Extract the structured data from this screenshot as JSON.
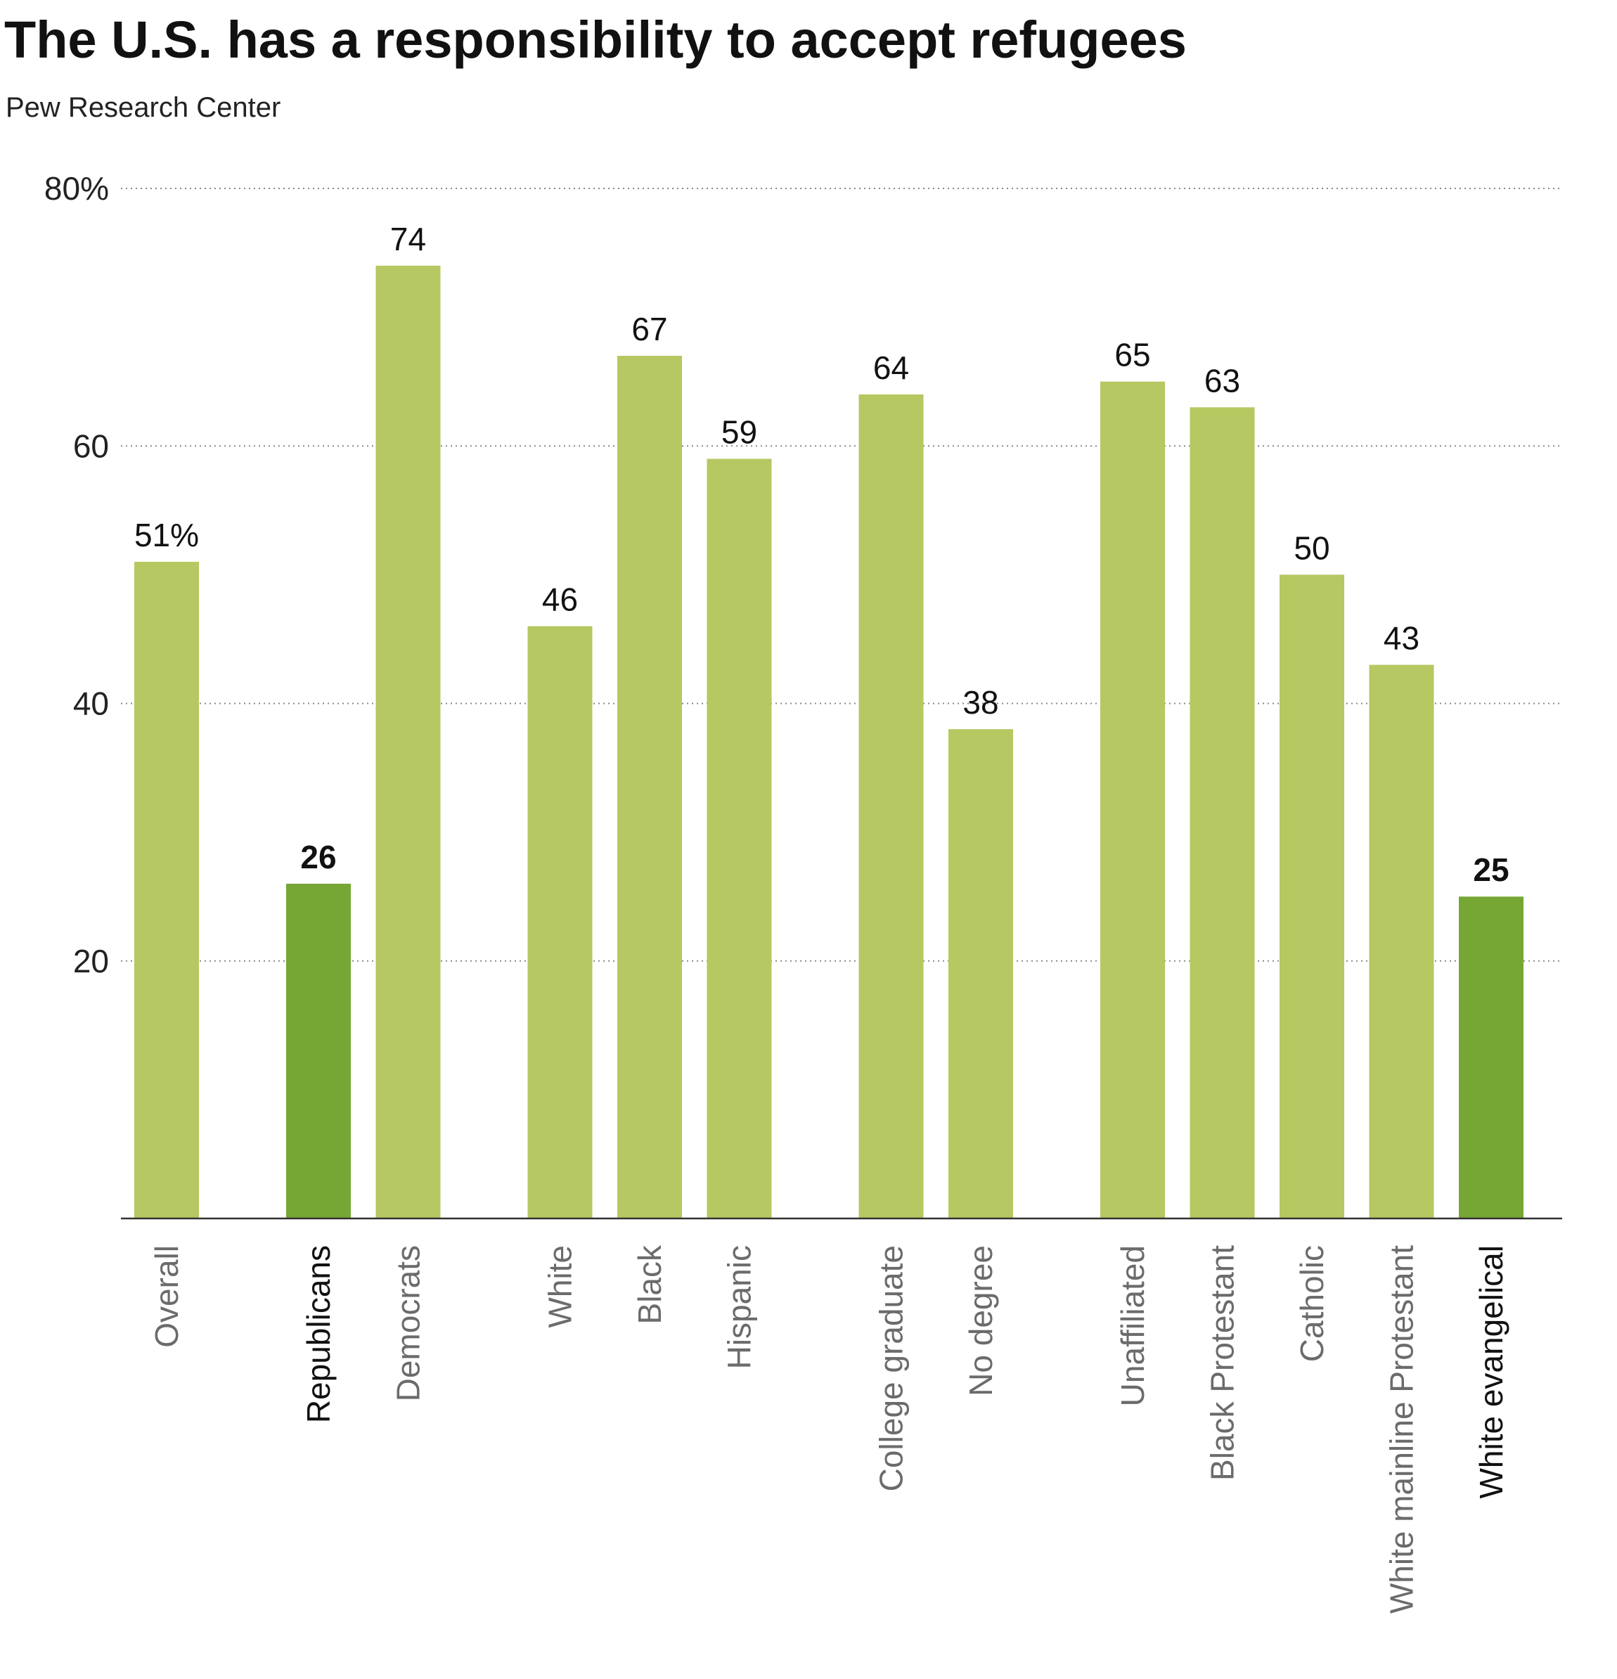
{
  "chart_data": {
    "type": "bar",
    "title": "The U.S. has a responsibility to accept refugees",
    "subtitle": "Pew Research Center",
    "ylim": [
      0,
      80
    ],
    "y_ticks": [
      {
        "value": 20,
        "label": "20"
      },
      {
        "value": 40,
        "label": "40"
      },
      {
        "value": 60,
        "label": "60"
      },
      {
        "value": 80,
        "label": "80%"
      }
    ],
    "grid": true,
    "groups": [
      [
        "Overall"
      ],
      [
        "Republicans",
        "Democrats"
      ],
      [
        "White",
        "Black",
        "Hispanic"
      ],
      [
        "College graduate",
        "No degree"
      ],
      [
        "Unaffiliated",
        "Black Protestant",
        "Catholic",
        "White mainline Protestant",
        "White evangelical"
      ]
    ],
    "categories": [
      "Overall",
      "Republicans",
      "Democrats",
      "White",
      "Black",
      "Hispanic",
      "College graduate",
      "No degree",
      "Unaffiliated",
      "Black Protestant",
      "Catholic",
      "White mainline Protestant",
      "White evangelical"
    ],
    "values": [
      51,
      26,
      74,
      46,
      67,
      59,
      64,
      38,
      65,
      63,
      50,
      43,
      25
    ],
    "value_labels": [
      "51%",
      "26",
      "74",
      "46",
      "67",
      "59",
      "64",
      "38",
      "65",
      "63",
      "50",
      "43",
      "25"
    ],
    "highlighted": [
      "Republicans",
      "White evangelical"
    ],
    "colors": {
      "default": "#b5c862",
      "highlight": "#76a735"
    }
  }
}
